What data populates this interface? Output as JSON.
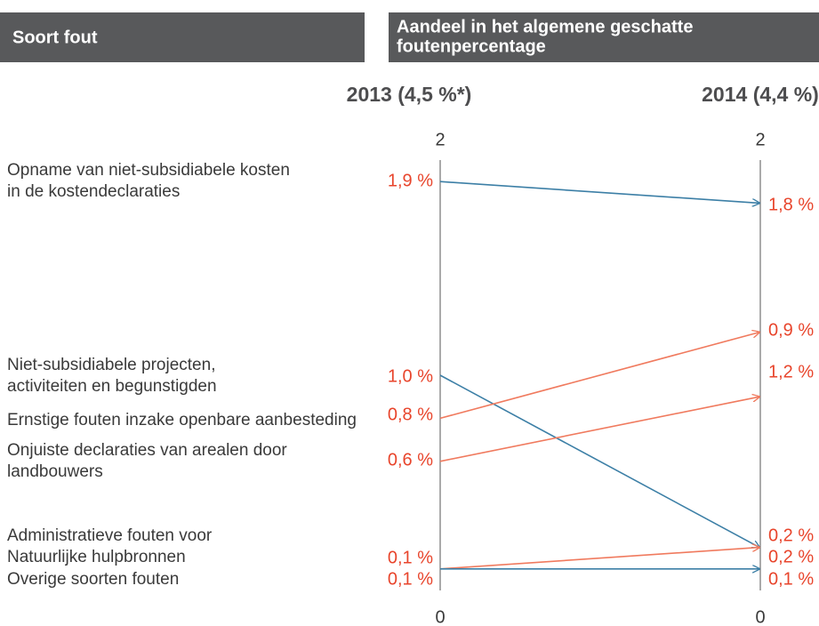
{
  "chart_data": {
    "type": "slope",
    "category_title": "Soort fout",
    "value_title": [
      "Aandeel in het algemene geschatte",
      "foutenpercentage"
    ],
    "x": [
      "2013 (4,5 %*)",
      "2014 (4,4 %)"
    ],
    "ylim": [
      0,
      2
    ],
    "yticks": [
      0,
      2
    ],
    "series": [
      {
        "name": [
          "Opname van niet-subsidiabele kosten",
          "in de kostendeclaraties"
        ],
        "color": "#3c7fa6",
        "values": [
          1.9,
          1.8
        ],
        "value_labels": [
          "1,9 %",
          "1,8 %"
        ]
      },
      {
        "name": [
          "Niet-subsidiabele projecten,",
          "activiteiten en begunstigden"
        ],
        "color": "#3c7fa6",
        "values": [
          1.0,
          0.2
        ],
        "value_labels": [
          "1,0 %",
          "0,2 %"
        ]
      },
      {
        "name": [
          "Ernstige fouten inzake openbare aanbesteding"
        ],
        "color": "#f07a5e",
        "values": [
          0.8,
          1.2
        ],
        "value_labels": [
          "0,8 %",
          "1,2 %"
        ]
      },
      {
        "name": [
          "Onjuiste declaraties van arealen door",
          "landbouwers"
        ],
        "color": "#f07a5e",
        "values": [
          0.6,
          0.9
        ],
        "value_labels": [
          "0,6 %",
          "0,9 %"
        ]
      },
      {
        "name": [
          "Administratieve fouten voor",
          "Natuurlijke hulpbronnen"
        ],
        "color": "#f07a5e",
        "values": [
          0.1,
          0.2
        ],
        "value_labels": [
          "0,1 %",
          "0,2 %"
        ]
      },
      {
        "name": [
          "Overige soorten fouten"
        ],
        "color": "#3c7fa6",
        "values": [
          0.1,
          0.1
        ],
        "value_labels": [
          "0,1 %",
          "0,1 %"
        ]
      }
    ]
  }
}
